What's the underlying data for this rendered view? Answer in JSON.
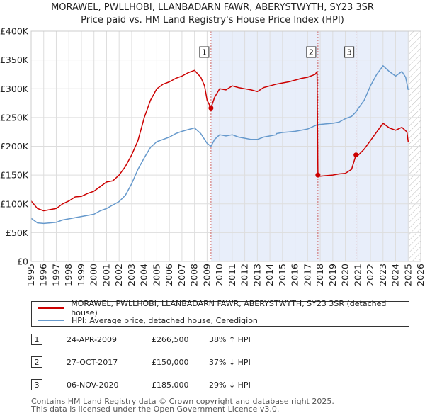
{
  "header": {
    "title_line1": "MORAWEL, PWLLHOBI, LLANBADARN FAWR, ABERYSTWYTH, SY23 3SR",
    "title_line2": "Price paid vs. HM Land Registry's House Price Index (HPI)"
  },
  "colors": {
    "price_line": "#cc0000",
    "hpi_line": "#6699cc",
    "shade": "#e8eefa",
    "grid": "#dddddd",
    "marker_line": "#cc6666"
  },
  "chart_data": {
    "type": "line",
    "title": "Price paid vs. HM Land Registry's House Price Index (HPI)",
    "xlabel": "",
    "ylabel": "",
    "xlim": [
      1995,
      2026
    ],
    "ylim": [
      0,
      400000
    ],
    "x_ticks": [
      1995,
      1996,
      1997,
      1998,
      1999,
      2000,
      2001,
      2002,
      2003,
      2004,
      2005,
      2006,
      2007,
      2008,
      2009,
      2010,
      2011,
      2012,
      2013,
      2014,
      2015,
      2016,
      2017,
      2018,
      2019,
      2020,
      2021,
      2022,
      2023,
      2024,
      2025,
      2026
    ],
    "y_ticks": [
      {
        "value": 0,
        "label": "£0"
      },
      {
        "value": 50000,
        "label": "£50K"
      },
      {
        "value": 100000,
        "label": "£100K"
      },
      {
        "value": 150000,
        "label": "£150K"
      },
      {
        "value": 200000,
        "label": "£200K"
      },
      {
        "value": 250000,
        "label": "£250K"
      },
      {
        "value": 300000,
        "label": "£300K"
      },
      {
        "value": 350000,
        "label": "£350K"
      },
      {
        "value": 400000,
        "label": "£400K"
      }
    ],
    "grid": true,
    "shaded_range": [
      2009.31,
      2025.05
    ],
    "hatched_from": 2025.05,
    "series": [
      {
        "name": "MORAWEL, PWLLHOBI, LLANBADARN FAWR, ABERYSTWYTH, SY23 3SR (detached house)",
        "color": "#cc0000",
        "points": [
          [
            1995.0,
            105000
          ],
          [
            1995.5,
            92000
          ],
          [
            1996.0,
            88000
          ],
          [
            1996.5,
            90000
          ],
          [
            1997.0,
            92000
          ],
          [
            1997.5,
            100000
          ],
          [
            1998.0,
            105000
          ],
          [
            1998.5,
            112000
          ],
          [
            1999.0,
            113000
          ],
          [
            1999.5,
            118000
          ],
          [
            2000.0,
            122000
          ],
          [
            2000.5,
            130000
          ],
          [
            2001.0,
            138000
          ],
          [
            2001.5,
            140000
          ],
          [
            2002.0,
            150000
          ],
          [
            2002.5,
            165000
          ],
          [
            2003.0,
            185000
          ],
          [
            2003.5,
            210000
          ],
          [
            2004.0,
            250000
          ],
          [
            2004.5,
            280000
          ],
          [
            2005.0,
            300000
          ],
          [
            2005.5,
            308000
          ],
          [
            2006.0,
            312000
          ],
          [
            2006.5,
            318000
          ],
          [
            2007.0,
            322000
          ],
          [
            2007.5,
            328000
          ],
          [
            2008.0,
            332000
          ],
          [
            2008.5,
            320000
          ],
          [
            2008.8,
            305000
          ],
          [
            2009.0,
            280000
          ],
          [
            2009.31,
            266500
          ],
          [
            2009.6,
            285000
          ],
          [
            2010.0,
            300000
          ],
          [
            2010.5,
            298000
          ],
          [
            2011.0,
            305000
          ],
          [
            2011.5,
            302000
          ],
          [
            2012.0,
            300000
          ],
          [
            2012.5,
            298000
          ],
          [
            2013.0,
            295000
          ],
          [
            2013.5,
            302000
          ],
          [
            2014.0,
            305000
          ],
          [
            2014.5,
            308000
          ],
          [
            2015.0,
            310000
          ],
          [
            2015.5,
            312000
          ],
          [
            2016.0,
            315000
          ],
          [
            2016.5,
            318000
          ],
          [
            2017.0,
            320000
          ],
          [
            2017.6,
            325000
          ],
          [
            2017.75,
            330000
          ],
          [
            2017.82,
            150000
          ],
          [
            2018.0,
            148000
          ],
          [
            2018.5,
            149000
          ],
          [
            2019.0,
            150000
          ],
          [
            2019.5,
            152000
          ],
          [
            2020.0,
            153000
          ],
          [
            2020.5,
            160000
          ],
          [
            2020.85,
            185000
          ],
          [
            2021.0,
            184000
          ],
          [
            2021.5,
            195000
          ],
          [
            2022.0,
            210000
          ],
          [
            2022.5,
            225000
          ],
          [
            2023.0,
            240000
          ],
          [
            2023.5,
            232000
          ],
          [
            2024.0,
            228000
          ],
          [
            2024.5,
            233000
          ],
          [
            2024.9,
            225000
          ],
          [
            2025.0,
            208000
          ]
        ]
      },
      {
        "name": "HPI: Average price, detached house, Ceredigion",
        "color": "#6699cc",
        "points": [
          [
            1995.0,
            75000
          ],
          [
            1995.5,
            67000
          ],
          [
            1996.0,
            66000
          ],
          [
            1996.5,
            67000
          ],
          [
            1997.0,
            68000
          ],
          [
            1997.5,
            72000
          ],
          [
            1998.0,
            74000
          ],
          [
            1998.5,
            76000
          ],
          [
            1999.0,
            78000
          ],
          [
            1999.5,
            80000
          ],
          [
            2000.0,
            82000
          ],
          [
            2000.5,
            88000
          ],
          [
            2001.0,
            92000
          ],
          [
            2001.5,
            98000
          ],
          [
            2002.0,
            104000
          ],
          [
            2002.5,
            115000
          ],
          [
            2003.0,
            135000
          ],
          [
            2003.5,
            160000
          ],
          [
            2004.0,
            180000
          ],
          [
            2004.5,
            198000
          ],
          [
            2005.0,
            208000
          ],
          [
            2005.5,
            212000
          ],
          [
            2006.0,
            216000
          ],
          [
            2006.5,
            222000
          ],
          [
            2007.0,
            226000
          ],
          [
            2007.5,
            229000
          ],
          [
            2008.0,
            232000
          ],
          [
            2008.5,
            222000
          ],
          [
            2009.0,
            205000
          ],
          [
            2009.31,
            200000
          ],
          [
            2009.6,
            212000
          ],
          [
            2010.0,
            220000
          ],
          [
            2010.5,
            218000
          ],
          [
            2011.0,
            220000
          ],
          [
            2011.5,
            216000
          ],
          [
            2012.0,
            214000
          ],
          [
            2012.5,
            212000
          ],
          [
            2013.0,
            212000
          ],
          [
            2013.5,
            216000
          ],
          [
            2014.0,
            218000
          ],
          [
            2014.5,
            220000
          ],
          [
            2014.5,
            222000
          ],
          [
            2015.0,
            224000
          ],
          [
            2015.5,
            225000
          ],
          [
            2016.0,
            226000
          ],
          [
            2016.5,
            228000
          ],
          [
            2017.0,
            230000
          ],
          [
            2017.82,
            238000
          ],
          [
            2018.0,
            238000
          ],
          [
            2018.5,
            239000
          ],
          [
            2019.0,
            240000
          ],
          [
            2019.5,
            242000
          ],
          [
            2020.0,
            248000
          ],
          [
            2020.5,
            252000
          ],
          [
            2020.85,
            260000
          ],
          [
            2021.0,
            265000
          ],
          [
            2021.5,
            280000
          ],
          [
            2022.0,
            305000
          ],
          [
            2022.5,
            325000
          ],
          [
            2023.0,
            340000
          ],
          [
            2023.5,
            330000
          ],
          [
            2024.0,
            322000
          ],
          [
            2024.5,
            330000
          ],
          [
            2024.8,
            320000
          ],
          [
            2025.0,
            298000
          ]
        ]
      }
    ],
    "sale_markers": [
      {
        "label": "1",
        "year": 2009.31,
        "price": 266500
      },
      {
        "label": "2",
        "year": 2017.82,
        "price": 150000
      },
      {
        "label": "3",
        "year": 2020.85,
        "price": 185000
      }
    ]
  },
  "legend": {
    "items": [
      {
        "label": "MORAWEL, PWLLHOBI, LLANBADARN FAWR, ABERYSTWYTH, SY23 3SR (detached house)",
        "color": "#cc0000"
      },
      {
        "label": "HPI: Average price, detached house, Ceredigion",
        "color": "#6699cc"
      }
    ]
  },
  "sales": [
    {
      "num": "1",
      "date": "24-APR-2009",
      "price": "£266,500",
      "change": "38% ↑ HPI"
    },
    {
      "num": "2",
      "date": "27-OCT-2017",
      "price": "£150,000",
      "change": "37% ↓ HPI"
    },
    {
      "num": "3",
      "date": "06-NOV-2020",
      "price": "£185,000",
      "change": "29% ↓ HPI"
    }
  ],
  "footer": {
    "line1": "Contains HM Land Registry data © Crown copyright and database right 2025.",
    "line2": "This data is licensed under the Open Government Licence v3.0."
  }
}
